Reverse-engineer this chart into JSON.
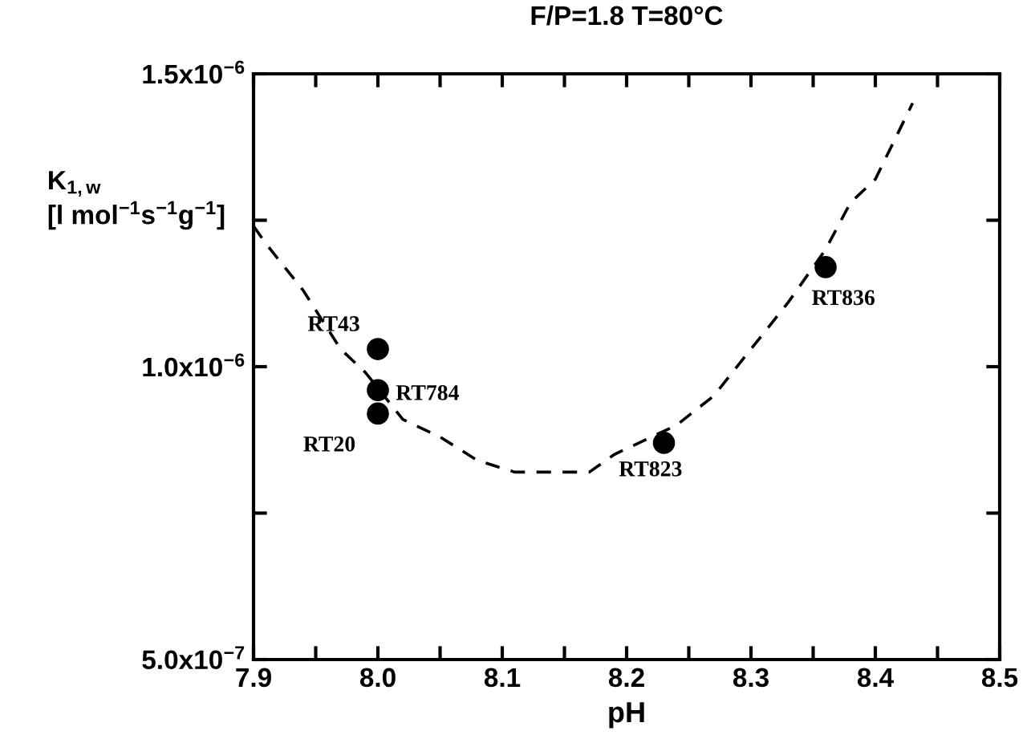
{
  "chart_data": {
    "type": "scatter",
    "title": "F/P=1.8 T=80°C",
    "xlabel": "pH",
    "ylabel": "K$_{1,w}$\n[l mol$^{−1}$s$^{−1}$g$^{−1}$]",
    "xlim": [
      7.9,
      8.5
    ],
    "ylim": [
      5e-07,
      1.5e-06
    ],
    "xticks": [
      {
        "value": 7.9,
        "label": "7.9"
      },
      {
        "value": 7.95,
        "label": null
      },
      {
        "value": 8.0,
        "label": "8.0"
      },
      {
        "value": 8.05,
        "label": null
      },
      {
        "value": 8.1,
        "label": "8.1"
      },
      {
        "value": 8.15,
        "label": null
      },
      {
        "value": 8.2,
        "label": "8.2"
      },
      {
        "value": 8.25,
        "label": null
      },
      {
        "value": 8.3,
        "label": "8.3"
      },
      {
        "value": 8.35,
        "label": null
      },
      {
        "value": 8.4,
        "label": "8.4"
      },
      {
        "value": 8.45,
        "label": null
      },
      {
        "value": 8.5,
        "label": "8.5"
      }
    ],
    "yticks": [
      {
        "value": 5e-07,
        "label": "5.0x10$^{−7}$"
      },
      {
        "value": 7.5e-07,
        "label": null
      },
      {
        "value": 1e-06,
        "label": "1.0x10$^{−6}$"
      },
      {
        "value": 1.25e-06,
        "label": null
      },
      {
        "value": 1.5e-06,
        "label": "1.5x10$^{−6}$"
      }
    ],
    "grid": false,
    "legend": false,
    "series": [
      {
        "color": "#000000",
        "marker": "circle",
        "x": [
          8.0,
          8.0,
          8.0,
          8.23,
          8.36
        ],
        "values": [
          1.03e-06,
          9.6e-07,
          9.2e-07,
          8.7e-07,
          1.17e-06
        ]
      },
      {
        "type": "line",
        "color": "#000000",
        "line_style": "dashed",
        "marker": "none",
        "x": [
          7.9,
          7.91,
          7.94,
          7.97,
          7.99,
          8.02,
          8.05,
          8.08,
          8.11,
          8.13,
          8.17,
          8.19,
          8.24,
          8.27,
          8.3,
          8.33,
          8.36,
          8.38,
          8.4,
          8.43
        ],
        "values": [
          1.24e-06,
          1.21e-06,
          1.13e-06,
          1.03e-06,
          9.9e-07,
          9.1e-07,
          8.8e-07,
          8.4e-07,
          8.2e-07,
          8.2e-07,
          8.2e-07,
          8.5e-07,
          9e-07,
          9.5e-07,
          1.03e-06,
          1.11e-06,
          1.2e-06,
          1.28e-06,
          1.32e-06,
          1.45e-06
        ]
      }
    ],
    "annotations": [
      {
        "text": "RT43",
        "x": 8.0,
        "y": 1.03e-06
      },
      {
        "text": "RT784",
        "x": 8.0,
        "y": 9.6e-07
      },
      {
        "text": "RT20",
        "x": 8.0,
        "y": 9.2e-07
      },
      {
        "text": "RT823",
        "x": 8.23,
        "y": 8.7e-07
      },
      {
        "text": "RT836",
        "x": 8.36,
        "y": 1.17e-06
      }
    ]
  }
}
